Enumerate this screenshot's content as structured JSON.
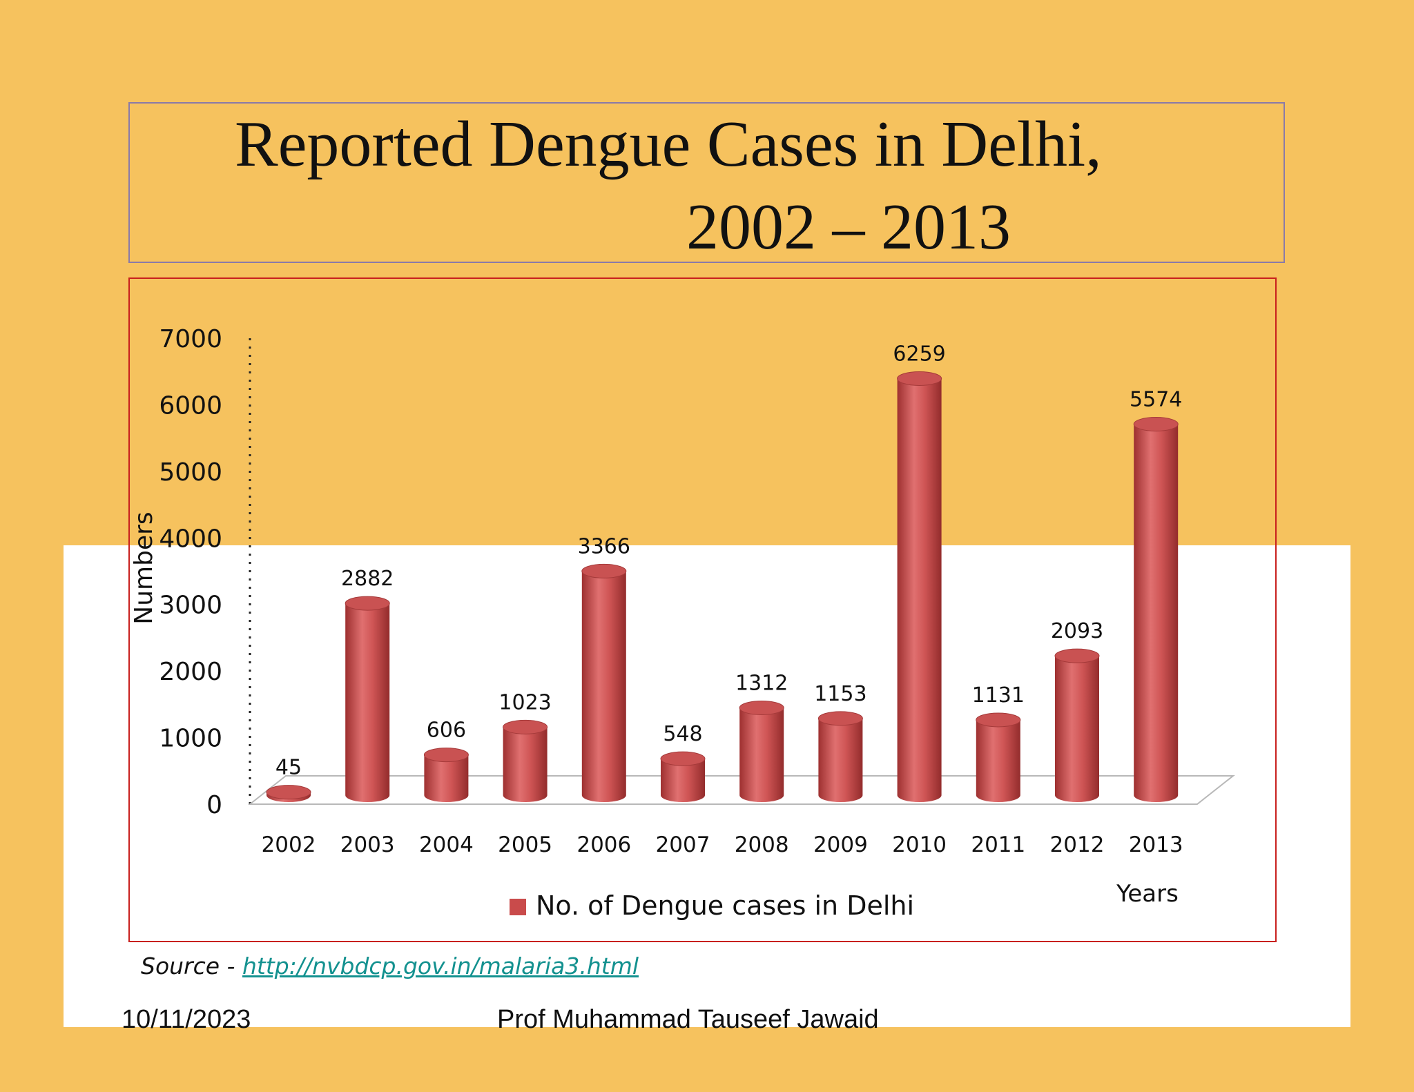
{
  "title": {
    "line1": "Reported Dengue Cases in Delhi,",
    "line2": "2002 – 2013"
  },
  "chart_data": {
    "type": "bar",
    "categories": [
      "2002",
      "2003",
      "2004",
      "2005",
      "2006",
      "2007",
      "2008",
      "2009",
      "2010",
      "2011",
      "2012",
      "2013"
    ],
    "series": [
      {
        "name": "No. of Dengue cases in Delhi",
        "values": [
          45,
          2882,
          606,
          1023,
          3366,
          548,
          1312,
          1153,
          6259,
          1131,
          2093,
          5574
        ],
        "color": "#C94B4B"
      }
    ],
    "data_labels": [
      "45",
      "2882",
      "606",
      "1023",
      "3366",
      "548",
      "1312",
      "1153",
      "6259",
      "1131",
      "2093",
      "5574"
    ],
    "ylabel": "Numbers",
    "xlabel": "Years",
    "ylim": [
      0,
      7000
    ],
    "yticks": [
      "0",
      "1000",
      "2000",
      "3000",
      "4000",
      "5000",
      "6000",
      "7000"
    ],
    "legend_position": "bottom",
    "grid": false
  },
  "source": {
    "prefix": "Source -",
    "link_text": "http://nvbdcp.gov.in/malaria3.html"
  },
  "footer": {
    "date": "10/11/2023",
    "author": "Prof Muhammad Tauseef Jawaid"
  },
  "colors": {
    "background": "#F6C25E",
    "bar": "#C94B4B",
    "frame": "#C8201E",
    "title_border": "#8A7AA8",
    "link": "#13918F"
  }
}
